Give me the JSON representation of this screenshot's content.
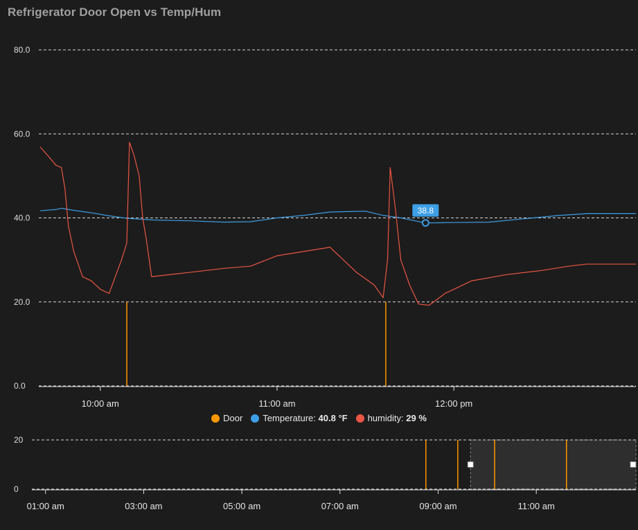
{
  "card": {
    "title": "Refrigerator Door Open vs Temp/Hum"
  },
  "legend": [
    {
      "name": "Door",
      "color": "#ff9800",
      "value": "",
      "unit": ""
    },
    {
      "name": "Temperature",
      "color": "#3e9ee6",
      "value": "40.8",
      "unit": "°F"
    },
    {
      "name": "humidity",
      "color": "#ea5545",
      "value": "29",
      "unit": "%"
    }
  ],
  "tooltip": {
    "value": "38.8"
  },
  "chart_data": [
    {
      "type": "line",
      "role": "main",
      "xlim": [
        9.66,
        13.03
      ],
      "ylim": [
        0,
        80
      ],
      "yticks": [
        0,
        20,
        40,
        60,
        80
      ],
      "ytick_labels": [
        "0.0",
        "20.0",
        "40.0",
        "60.0",
        "80.0"
      ],
      "xticks": [
        10,
        11,
        12
      ],
      "xtick_labels": [
        "10:00 am",
        "11:00 am",
        "12:00 pm"
      ],
      "grid": true,
      "legend_position": "bottom",
      "series": [
        {
          "name": "Door",
          "color": "#ff9800",
          "style": "spikes",
          "points": [
            [
              10.15,
              20
            ],
            [
              11.615,
              20
            ]
          ]
        },
        {
          "name": "Temperature",
          "color": "#3e9ee6",
          "style": "line",
          "points": [
            [
              9.66,
              41.7
            ],
            [
              9.75,
              42.0
            ],
            [
              9.78,
              42.3
            ],
            [
              9.85,
              41.8
            ],
            [
              9.95,
              41.2
            ],
            [
              10.05,
              40.5
            ],
            [
              10.15,
              39.9
            ],
            [
              10.3,
              39.5
            ],
            [
              10.5,
              39.3
            ],
            [
              10.7,
              39.0
            ],
            [
              10.85,
              39.1
            ],
            [
              11.0,
              40.0
            ],
            [
              11.15,
              40.6
            ],
            [
              11.3,
              41.4
            ],
            [
              11.5,
              41.6
            ],
            [
              11.6,
              40.6
            ],
            [
              11.7,
              40.0
            ],
            [
              11.84,
              38.8
            ],
            [
              12.0,
              38.9
            ],
            [
              12.2,
              39.0
            ],
            [
              12.4,
              39.8
            ],
            [
              12.6,
              40.6
            ],
            [
              12.75,
              41.0
            ],
            [
              13.03,
              41.0
            ]
          ]
        },
        {
          "name": "humidity",
          "color": "#ea5545",
          "style": "line",
          "points": [
            [
              9.66,
              56.9
            ],
            [
              9.7,
              55.0
            ],
            [
              9.75,
              52.5
            ],
            [
              9.78,
              52.0
            ],
            [
              9.8,
              47.0
            ],
            [
              9.82,
              38.0
            ],
            [
              9.85,
              32.0
            ],
            [
              9.9,
              26.0
            ],
            [
              9.95,
              25.0
            ],
            [
              10.0,
              23.0
            ],
            [
              10.05,
              22.0
            ],
            [
              10.12,
              30.0
            ],
            [
              10.15,
              34.0
            ],
            [
              10.165,
              58.0
            ],
            [
              10.19,
              55.0
            ],
            [
              10.22,
              50.0
            ],
            [
              10.24,
              40.0
            ],
            [
              10.26,
              35.0
            ],
            [
              10.29,
              26.0
            ],
            [
              10.5,
              27.0
            ],
            [
              10.7,
              28.0
            ],
            [
              10.85,
              28.5
            ],
            [
              11.0,
              31.0
            ],
            [
              11.15,
              32.0
            ],
            [
              11.3,
              33.0
            ],
            [
              11.45,
              27.0
            ],
            [
              11.55,
              24.0
            ],
            [
              11.6,
              21.0
            ],
            [
              11.625,
              30.0
            ],
            [
              11.64,
              52.0
            ],
            [
              11.67,
              42.0
            ],
            [
              11.7,
              30.0
            ],
            [
              11.75,
              24.0
            ],
            [
              11.8,
              19.5
            ],
            [
              11.86,
              19.2
            ],
            [
              11.95,
              22.0
            ],
            [
              12.1,
              25.0
            ],
            [
              12.3,
              26.5
            ],
            [
              12.5,
              27.5
            ],
            [
              12.65,
              28.5
            ],
            [
              12.75,
              29.0
            ],
            [
              13.03,
              29.0
            ]
          ]
        }
      ]
    },
    {
      "type": "line",
      "role": "navigator",
      "xlim": [
        0.75,
        13.03
      ],
      "ylim": [
        0,
        20
      ],
      "yticks": [
        0,
        20
      ],
      "ytick_labels": [
        "0",
        "20"
      ],
      "xticks": [
        1,
        3,
        5,
        7,
        9,
        11
      ],
      "xtick_labels": [
        "01:00 am",
        "03:00 am",
        "05:00 am",
        "07:00 am",
        "09:00 am",
        "11:00 am"
      ],
      "selection": [
        9.66,
        13.03
      ],
      "series": [
        {
          "name": "Door",
          "color": "#ff9800",
          "style": "spikes",
          "points": [
            [
              8.75,
              20
            ],
            [
              9.4,
              20
            ],
            [
              10.15,
              20
            ],
            [
              11.615,
              20
            ]
          ]
        }
      ]
    }
  ]
}
